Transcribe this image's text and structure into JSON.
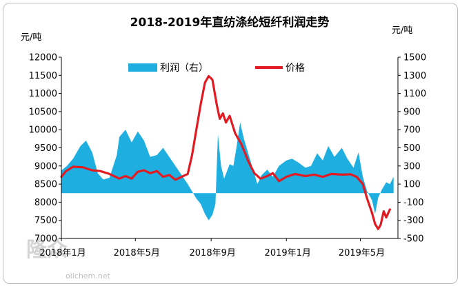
{
  "chart_data": {
    "type": "area+line",
    "title": "2018-2019年直纺涤纶短纤利润走势",
    "y_left_unit": "元/吨",
    "y_right_unit": "元/吨",
    "y_left_range": [
      7000,
      12000
    ],
    "y_left_ticks": [
      "12000",
      "11500",
      "11000",
      "10500",
      "10000",
      "9500",
      "9000",
      "8500",
      "8000",
      "7500",
      "7000"
    ],
    "y_right_range": [
      -500,
      1500
    ],
    "y_right_ticks": [
      "1500",
      "1300",
      "1100",
      "900",
      "700",
      "500",
      "300",
      "100",
      "-100",
      "-300",
      "-500"
    ],
    "x_range": [
      "2018-01-01",
      "2019-07-01"
    ],
    "x_tick_labels": [
      "2018年1月",
      "2018年5月",
      "2018年9月",
      "2019年1月",
      "2019年5月"
    ],
    "x_tick_dates": [
      "2018-01-01",
      "2018-05-01",
      "2018-09-01",
      "2019-01-01",
      "2019-05-01"
    ],
    "legend_position": "top",
    "grid": false,
    "series": [
      {
        "name": "利润（右）",
        "type": "area",
        "axis": "right",
        "color": "#1FAEE0",
        "points": [
          [
            "2018-01-01",
            250
          ],
          [
            "2018-01-10",
            300
          ],
          [
            "2018-01-20",
            380
          ],
          [
            "2018-02-01",
            520
          ],
          [
            "2018-02-10",
            580
          ],
          [
            "2018-02-20",
            450
          ],
          [
            "2018-03-01",
            220
          ],
          [
            "2018-03-10",
            150
          ],
          [
            "2018-03-20",
            170
          ],
          [
            "2018-04-01",
            420
          ],
          [
            "2018-04-05",
            620
          ],
          [
            "2018-04-15",
            700
          ],
          [
            "2018-04-25",
            560
          ],
          [
            "2018-05-05",
            680
          ],
          [
            "2018-05-15",
            580
          ],
          [
            "2018-05-25",
            400
          ],
          [
            "2018-06-05",
            420
          ],
          [
            "2018-06-15",
            500
          ],
          [
            "2018-06-25",
            400
          ],
          [
            "2018-07-05",
            300
          ],
          [
            "2018-07-15",
            200
          ],
          [
            "2018-07-25",
            100
          ],
          [
            "2018-08-01",
            20
          ],
          [
            "2018-08-08",
            -60
          ],
          [
            "2018-08-15",
            -120
          ],
          [
            "2018-08-22",
            -230
          ],
          [
            "2018-08-28",
            -300
          ],
          [
            "2018-09-03",
            -240
          ],
          [
            "2018-09-08",
            -120
          ],
          [
            "2018-09-12",
            650
          ],
          [
            "2018-09-17",
            300
          ],
          [
            "2018-09-22",
            160
          ],
          [
            "2018-10-01",
            320
          ],
          [
            "2018-10-07",
            300
          ],
          [
            "2018-10-12",
            500
          ],
          [
            "2018-10-18",
            780
          ],
          [
            "2018-10-24",
            600
          ],
          [
            "2018-11-01",
            420
          ],
          [
            "2018-11-08",
            260
          ],
          [
            "2018-11-15",
            100
          ],
          [
            "2018-11-22",
            200
          ],
          [
            "2018-12-01",
            260
          ],
          [
            "2018-12-10",
            180
          ],
          [
            "2018-12-20",
            300
          ],
          [
            "2019-01-01",
            360
          ],
          [
            "2019-01-10",
            380
          ],
          [
            "2019-01-20",
            340
          ],
          [
            "2019-02-01",
            280
          ],
          [
            "2019-02-10",
            300
          ],
          [
            "2019-02-20",
            440
          ],
          [
            "2019-03-01",
            360
          ],
          [
            "2019-03-10",
            520
          ],
          [
            "2019-03-20",
            400
          ],
          [
            "2019-04-01",
            500
          ],
          [
            "2019-04-10",
            380
          ],
          [
            "2019-04-20",
            280
          ],
          [
            "2019-04-28",
            450
          ],
          [
            "2019-05-05",
            180
          ],
          [
            "2019-05-12",
            20
          ],
          [
            "2019-05-20",
            -80
          ],
          [
            "2019-05-25",
            -230
          ],
          [
            "2019-05-30",
            -50
          ],
          [
            "2019-06-05",
            40
          ],
          [
            "2019-06-12",
            120
          ],
          [
            "2019-06-18",
            100
          ],
          [
            "2019-06-24",
            180
          ]
        ]
      },
      {
        "name": "价格",
        "type": "line",
        "axis": "left",
        "color": "#E21B23",
        "points": [
          [
            "2018-01-01",
            8700
          ],
          [
            "2018-01-08",
            8850
          ],
          [
            "2018-01-20",
            8980
          ],
          [
            "2018-02-05",
            8960
          ],
          [
            "2018-02-20",
            8880
          ],
          [
            "2018-03-05",
            8860
          ],
          [
            "2018-03-20",
            8780
          ],
          [
            "2018-04-05",
            8650
          ],
          [
            "2018-04-15",
            8720
          ],
          [
            "2018-04-25",
            8650
          ],
          [
            "2018-05-05",
            8840
          ],
          [
            "2018-05-15",
            8880
          ],
          [
            "2018-05-25",
            8800
          ],
          [
            "2018-06-05",
            8860
          ],
          [
            "2018-06-15",
            8700
          ],
          [
            "2018-06-25",
            8750
          ],
          [
            "2018-07-05",
            8620
          ],
          [
            "2018-07-15",
            8700
          ],
          [
            "2018-07-25",
            8780
          ],
          [
            "2018-08-01",
            9300
          ],
          [
            "2018-08-08",
            10000
          ],
          [
            "2018-08-15",
            10700
          ],
          [
            "2018-08-22",
            11300
          ],
          [
            "2018-08-28",
            11480
          ],
          [
            "2018-09-03",
            11380
          ],
          [
            "2018-09-10",
            10700
          ],
          [
            "2018-09-15",
            10300
          ],
          [
            "2018-09-20",
            10450
          ],
          [
            "2018-09-25",
            10200
          ],
          [
            "2018-10-01",
            10380
          ],
          [
            "2018-10-10",
            9900
          ],
          [
            "2018-10-20",
            9600
          ],
          [
            "2018-11-01",
            9100
          ],
          [
            "2018-11-10",
            8800
          ],
          [
            "2018-11-20",
            8650
          ],
          [
            "2018-12-01",
            8720
          ],
          [
            "2018-12-10",
            8800
          ],
          [
            "2018-12-20",
            8580
          ],
          [
            "2019-01-01",
            8700
          ],
          [
            "2019-01-15",
            8780
          ],
          [
            "2019-02-01",
            8720
          ],
          [
            "2019-02-15",
            8760
          ],
          [
            "2019-03-01",
            8700
          ],
          [
            "2019-03-15",
            8780
          ],
          [
            "2019-04-01",
            8760
          ],
          [
            "2019-04-15",
            8770
          ],
          [
            "2019-04-25",
            8700
          ],
          [
            "2019-05-05",
            8500
          ],
          [
            "2019-05-12",
            8100
          ],
          [
            "2019-05-20",
            7700
          ],
          [
            "2019-05-25",
            7400
          ],
          [
            "2019-05-30",
            7260
          ],
          [
            "2019-06-03",
            7380
          ],
          [
            "2019-06-08",
            7750
          ],
          [
            "2019-06-12",
            7580
          ],
          [
            "2019-06-18",
            7800
          ]
        ]
      }
    ]
  },
  "watermark": {
    "main": "隆众",
    "sub": "oilchem.net"
  }
}
